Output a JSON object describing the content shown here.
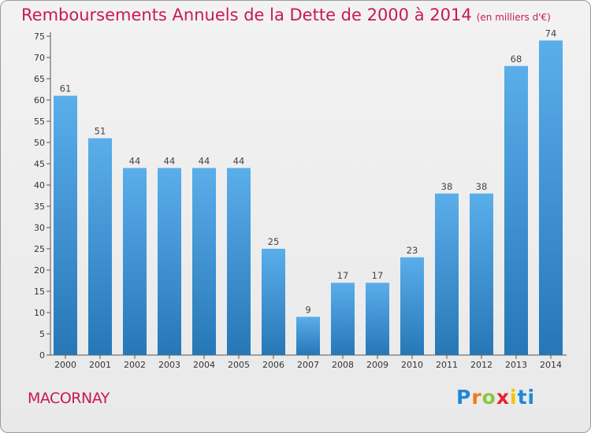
{
  "chart_data": {
    "type": "bar",
    "title": "Remboursements Annuels de la Dette de 2000 à 2014",
    "unit": "(en milliers d'€)",
    "categories": [
      "2000",
      "2001",
      "2002",
      "2003",
      "2004",
      "2005",
      "2006",
      "2007",
      "2008",
      "2009",
      "2010",
      "2011",
      "2012",
      "2013",
      "2014"
    ],
    "values": [
      61,
      51,
      44,
      44,
      44,
      44,
      25,
      9,
      17,
      17,
      23,
      38,
      38,
      68,
      74
    ],
    "ylim": [
      0,
      75
    ],
    "yticks": [
      0,
      5,
      10,
      15,
      20,
      25,
      30,
      35,
      40,
      45,
      50,
      55,
      60,
      65,
      70,
      75
    ],
    "grid": false,
    "bar_color_top": "#5aaeea",
    "bar_color_bottom": "#2677b6"
  },
  "commune": "MACORNAY",
  "brand": {
    "letters": [
      "P",
      "r",
      "o",
      "x",
      "i",
      "ti"
    ]
  }
}
